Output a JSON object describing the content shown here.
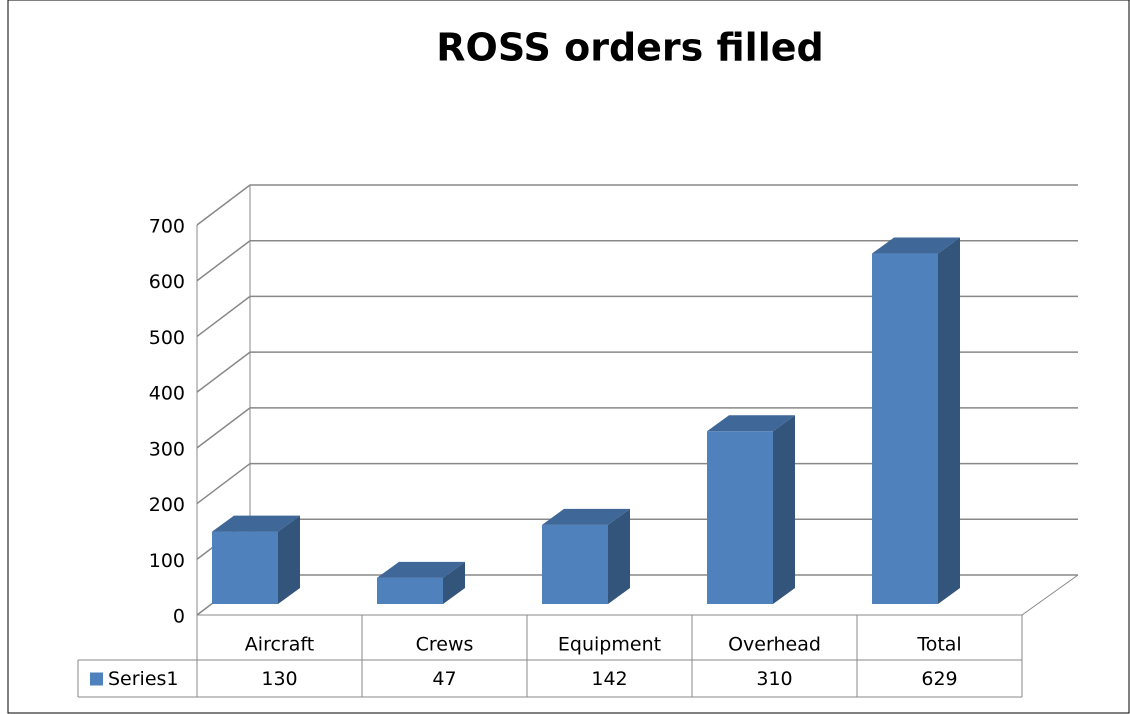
{
  "chart_data": {
    "type": "bar",
    "title": "ROSS orders filled",
    "categories": [
      "Aircraft",
      "Crews",
      "Equipment",
      "Overhead",
      "Total"
    ],
    "series": [
      {
        "name": "Series1",
        "color": "#4f81bd",
        "values": [
          130,
          47,
          142,
          310,
          629
        ]
      }
    ],
    "ylim": [
      0,
      700
    ],
    "yticks": [
      0,
      100,
      200,
      300,
      400,
      500,
      600,
      700
    ],
    "grid": true,
    "data_table": true
  }
}
